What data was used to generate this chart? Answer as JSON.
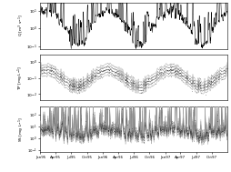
{
  "subplots": [
    {
      "ylabel": "Q [m$^3$ s$^{-1}$]",
      "ylim": [
        0.07,
        30
      ],
      "yticks": [
        0.1,
        1,
        10
      ],
      "yticklabels": [
        "10$^{-1}$",
        "10$^{0}$",
        "10$^{1}$"
      ]
    },
    {
      "ylabel": "TP [mg L$^{-1}$]",
      "ylim": [
        0.004,
        3
      ],
      "yticks": [
        0.01,
        0.1,
        1
      ],
      "yticklabels": [
        "10$^{-2}$",
        "10$^{-1}$",
        "10$^{0}$"
      ]
    },
    {
      "ylabel": "SS [mg L$^{-1}$]",
      "ylim": [
        0.07,
        500
      ],
      "yticks": [
        0.1,
        1,
        10,
        100
      ],
      "yticklabels": [
        "10$^{-1}$",
        "10$^{0}$",
        "10$^{1}$",
        "10$^{2}$"
      ]
    }
  ],
  "xtick_labels": [
    "Jan95",
    "Apr95",
    "Jul95",
    "Oct95",
    "Jan96",
    "Apr96",
    "Jul96",
    "Oct96",
    "Jan97",
    "Apr97",
    "Jul97",
    "Oct97"
  ],
  "xtick_pos": [
    0,
    89,
    181,
    273,
    365,
    454,
    546,
    638,
    730,
    819,
    911,
    1003
  ],
  "n_points": 1096
}
